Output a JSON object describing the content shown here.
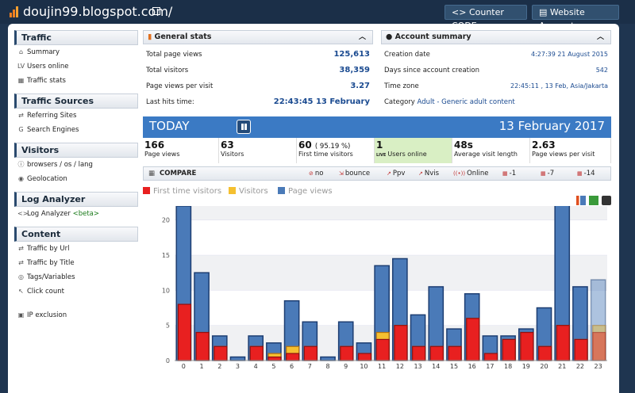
{
  "topbar": {
    "site_title": "doujin99.blogspot.com/",
    "counter_code": "Counter CODE",
    "website_account": "Website Account"
  },
  "sidebar": {
    "sections": [
      {
        "title": "Traffic",
        "items": [
          {
            "icon": "house-icon",
            "label": "Summary"
          },
          {
            "icon": "live-icon",
            "label": "Users online"
          },
          {
            "icon": "table-icon",
            "label": "Traffic stats"
          }
        ]
      },
      {
        "title": "Traffic Sources",
        "items": [
          {
            "icon": "link-icon",
            "label": "Referring Sites"
          },
          {
            "icon": "google-icon",
            "label": "Search Engines"
          }
        ]
      },
      {
        "title": "Visitors",
        "items": [
          {
            "icon": "info-icon",
            "label": "browsers / os / lang"
          },
          {
            "icon": "globe-icon",
            "label": "Geolocation"
          }
        ]
      },
      {
        "title": "Log Analyzer",
        "items": [
          {
            "icon": "code-icon",
            "label": "Log Analyzer",
            "extra": "<beta>"
          }
        ]
      },
      {
        "title": "Content",
        "items": [
          {
            "icon": "link-icon",
            "label": "Traffic by Url"
          },
          {
            "icon": "link-icon",
            "label": "Traffic by Title"
          },
          {
            "icon": "tag-icon",
            "label": "Tags/Variables"
          },
          {
            "icon": "cursor-icon",
            "label": "Click count"
          }
        ]
      }
    ],
    "ip_exclusion": "IP exclusion"
  },
  "general_stats": {
    "title": "General stats",
    "rows": [
      {
        "label": "Total page views",
        "value": "125,613"
      },
      {
        "label": "Total visitors",
        "value": "38,359"
      },
      {
        "label": "Page views per visit",
        "value": "3.27"
      },
      {
        "label": "Last hits time:",
        "value": "22:43:45 13 February"
      }
    ]
  },
  "account_summary": {
    "title": "Account summary",
    "rows": [
      {
        "label": "Creation date",
        "value": "4:27:39 21 August 2015"
      },
      {
        "label": "Days since account creation",
        "value": "542"
      },
      {
        "label": "Time zone",
        "value": "22:45:11 , 13 Feb, Asia/Jakarta"
      }
    ],
    "category_label": "Category",
    "category_value": "Adult - Generic adult content"
  },
  "today": {
    "label": "TODAY",
    "date": "13 February 2017"
  },
  "kpis": [
    {
      "num": "166",
      "label": "Page views"
    },
    {
      "num": "63",
      "label": "Visitors"
    },
    {
      "num": "60",
      "extra": "( 95.19 %)",
      "label": "First time visitors"
    },
    {
      "num": "1",
      "label": "Users online",
      "live": "LIVE"
    },
    {
      "num": "48s",
      "label": "Average visit length"
    },
    {
      "num": "2.63",
      "label": "Page views per visit"
    }
  ],
  "compare": {
    "title": "COMPARE",
    "items": [
      "no",
      "bounce",
      "Ppv",
      "Nvis",
      "Online",
      "-1",
      "-7",
      "-14"
    ]
  },
  "chart_data": {
    "type": "bar",
    "x": [
      0,
      1,
      2,
      3,
      4,
      5,
      6,
      7,
      8,
      9,
      10,
      11,
      12,
      13,
      14,
      15,
      16,
      17,
      18,
      19,
      20,
      21,
      22,
      23
    ],
    "ylim": [
      0,
      22
    ],
    "yticks": [
      0,
      5,
      10,
      15,
      20
    ],
    "series": [
      {
        "name": "First time visitors",
        "color": "#e82020",
        "values": [
          8,
          4,
          2,
          0,
          2,
          0.5,
          1,
          2,
          0,
          2,
          1,
          3,
          5,
          2,
          2,
          2,
          6,
          1,
          3,
          4,
          2,
          5,
          3,
          4
        ]
      },
      {
        "name": "Visitors",
        "color": "#f5c030",
        "values": [
          8,
          4,
          2,
          0,
          2,
          1,
          2,
          2,
          0,
          2,
          1,
          4,
          5,
          2,
          2,
          2,
          6,
          1,
          3,
          4,
          2,
          5,
          3,
          5
        ]
      },
      {
        "name": "Page views",
        "color": "#4a7ab8",
        "values": [
          22,
          12.5,
          3.5,
          0.5,
          3.5,
          2.5,
          8.5,
          5.5,
          0.5,
          5.5,
          2.5,
          13.5,
          14.5,
          6.5,
          10.5,
          4.5,
          9.5,
          3.5,
          3.5,
          4.5,
          7.5,
          22.5,
          10.5,
          11.5
        ]
      }
    ]
  }
}
